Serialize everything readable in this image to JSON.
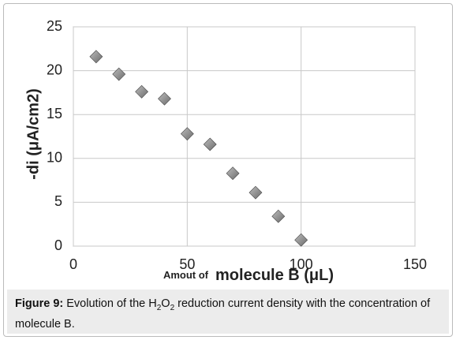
{
  "chart_data": {
    "type": "scatter",
    "x_label_parts": [
      "Amout of",
      "molecule B (μL)"
    ],
    "y_label": "-di (μA/cm2)",
    "x": [
      10,
      20,
      30,
      40,
      50,
      60,
      70,
      80,
      90,
      100
    ],
    "series": [
      {
        "name": "molecule B",
        "color": "#6b6b6b",
        "values": [
          21.6,
          19.6,
          17.6,
          16.8,
          12.8,
          11.6,
          8.3,
          6.1,
          3.4,
          0.7
        ]
      }
    ],
    "xlim": [
      0,
      150
    ],
    "xticks": [
      0,
      50,
      100,
      150
    ],
    "ylim": [
      0,
      25
    ],
    "yticks": [
      0,
      5,
      10,
      15,
      20,
      25
    ],
    "grid": true
  },
  "caption": {
    "label": "Figure 9:",
    "segments": [
      {
        "text": " Evolution of the H"
      },
      {
        "text": "2",
        "sub": true
      },
      {
        "text": "O"
      },
      {
        "text": "2",
        "sub": true
      },
      {
        "text": " reduction current density with the concentration of molecule B."
      }
    ]
  }
}
